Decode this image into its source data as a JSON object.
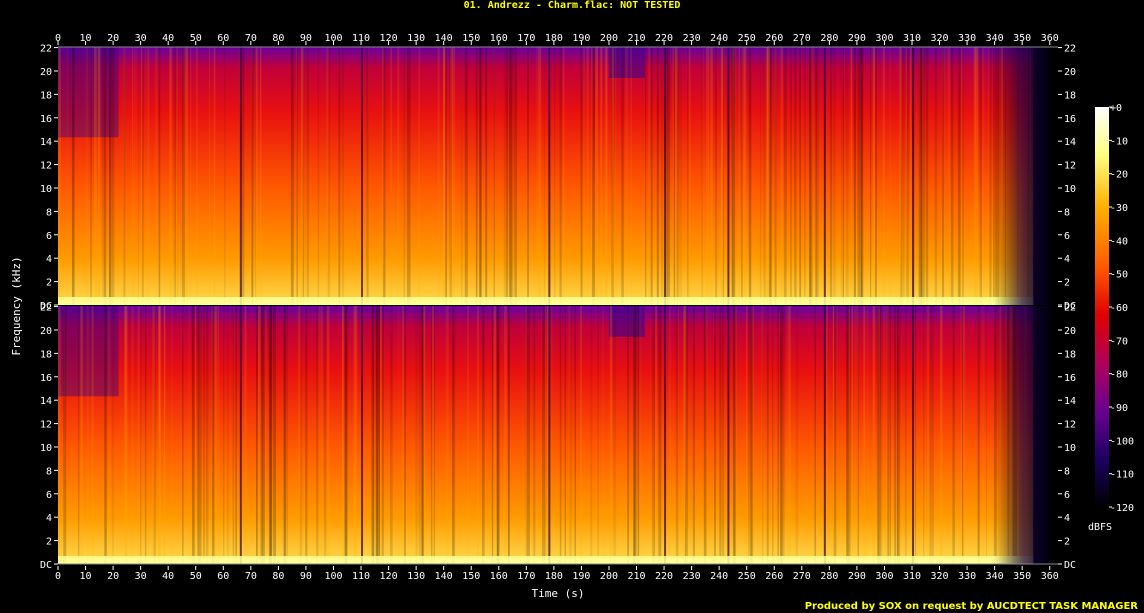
{
  "title": "01. Andrezz - Charm.flac: NOT TESTED",
  "footer": "Produced by SOX on request by AUCDTECT TASK MANAGER",
  "chart_data": {
    "type": "heatmap",
    "title": "01. Andrezz - Charm.flac: NOT TESTED",
    "xlabel": "Time (s)",
    "ylabel": "Frequency (kHz)",
    "xlim": [
      0,
      363
    ],
    "ylim": [
      0,
      22.05
    ],
    "x_ticks": [
      0,
      10,
      20,
      30,
      40,
      50,
      60,
      70,
      80,
      90,
      100,
      110,
      120,
      130,
      140,
      150,
      160,
      170,
      180,
      190,
      200,
      210,
      220,
      230,
      240,
      250,
      260,
      270,
      280,
      290,
      300,
      310,
      320,
      330,
      340,
      350,
      360
    ],
    "y_ticks": [
      {
        "value": 0,
        "label": "DC"
      },
      {
        "value": 2,
        "label": "2"
      },
      {
        "value": 4,
        "label": "4"
      },
      {
        "value": 6,
        "label": "6"
      },
      {
        "value": 8,
        "label": "8"
      },
      {
        "value": 10,
        "label": "10"
      },
      {
        "value": 12,
        "label": "12"
      },
      {
        "value": 14,
        "label": "14"
      },
      {
        "value": 16,
        "label": "16"
      },
      {
        "value": 18,
        "label": "18"
      },
      {
        "value": 20,
        "label": "20"
      },
      {
        "value": 22,
        "label": "22"
      }
    ],
    "channels": [
      "top",
      "bottom"
    ],
    "colorbar": {
      "label": "dBFS",
      "range": [
        -120,
        0
      ],
      "ticks": [
        "+0",
        "-10",
        "-20",
        "-30",
        "-40",
        "-50",
        "-60",
        "-70",
        "-80",
        "-90",
        "-100",
        "-110",
        "-120"
      ],
      "colors": [
        "#000000",
        "#1a0040",
        "#4a0090",
        "#8c0090",
        "#c0004a",
        "#e60000",
        "#ff3a00",
        "#ff7a00",
        "#ffb000",
        "#ffe040",
        "#ffffd0",
        "#ffffff"
      ]
    },
    "grid": false
  }
}
